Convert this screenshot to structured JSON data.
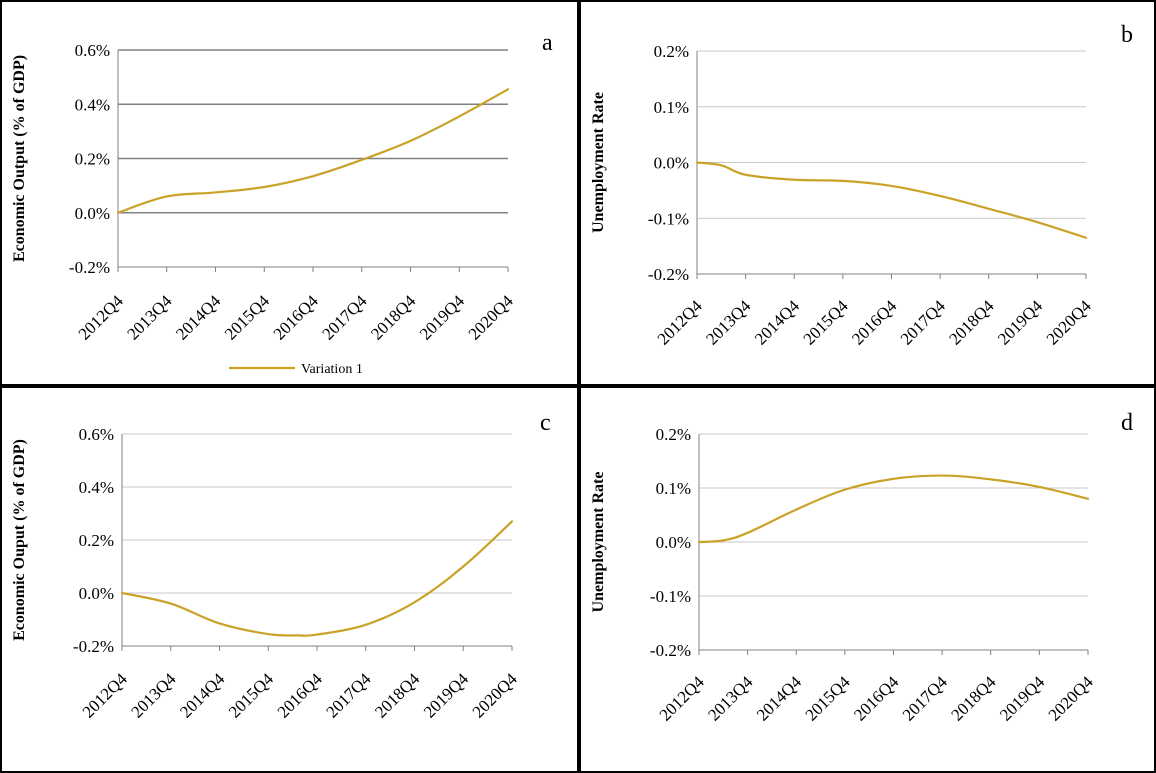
{
  "colors": {
    "series": "#c9a227",
    "axis": "#808080",
    "grid_light": "#c8c8c8",
    "grid_dark": "#808080"
  },
  "chart_data": [
    {
      "panel": "a",
      "type": "line",
      "ylabel": "Economic Output (% of GDP)",
      "ylim": [
        -0.2,
        0.6
      ],
      "yticks": [
        "-0.2%",
        "0.0%",
        "0.2%",
        "0.4%",
        "0.6%"
      ],
      "yticks_values": [
        -0.2,
        0.0,
        0.2,
        0.4,
        0.6
      ],
      "xticks": [
        "2012Q4",
        "2013Q4",
        "2014Q4",
        "2015Q4",
        "2016Q4",
        "2017Q4",
        "2018Q4",
        "2019Q4",
        "2020Q4"
      ],
      "grid": "major-dark",
      "legend": "bottom",
      "series": [
        {
          "name": "Variation 1",
          "x": [
            0,
            1,
            2,
            3,
            4,
            5,
            6,
            7,
            8
          ],
          "y": [
            0.0,
            0.06,
            0.075,
            0.095,
            0.135,
            0.195,
            0.265,
            0.355,
            0.455
          ]
        }
      ]
    },
    {
      "panel": "b",
      "type": "line",
      "ylabel": "Unemployment Rate",
      "ylim": [
        -0.2,
        0.2
      ],
      "yticks": [
        "-0.2%",
        "-0.1%",
        "0.0%",
        "0.1%",
        "0.2%"
      ],
      "yticks_values": [
        -0.2,
        -0.1,
        0.0,
        0.1,
        0.2
      ],
      "xticks": [
        "2012Q4",
        "2013Q4",
        "2014Q4",
        "2015Q4",
        "2016Q4",
        "2017Q4",
        "2018Q4",
        "2019Q4",
        "2020Q4"
      ],
      "grid": "major-light",
      "series": [
        {
          "name": "",
          "x": [
            0,
            0.5,
            1,
            2,
            3,
            4,
            5,
            6,
            7,
            8
          ],
          "y": [
            0.0,
            -0.005,
            -0.022,
            -0.031,
            -0.033,
            -0.042,
            -0.06,
            -0.083,
            -0.107,
            -0.135
          ]
        }
      ]
    },
    {
      "panel": "c",
      "type": "line",
      "ylabel": "Economic Ouput (% of GDP)",
      "ylim": [
        -0.2,
        0.6
      ],
      "yticks": [
        "-0.2%",
        "0.0%",
        "0.2%",
        "0.4%",
        "0.6%"
      ],
      "yticks_values": [
        -0.2,
        0.0,
        0.2,
        0.4,
        0.6
      ],
      "xticks": [
        "2012Q4",
        "2013Q4",
        "2014Q4",
        "2015Q4",
        "2016Q4",
        "2017Q4",
        "2018Q4",
        "2019Q4",
        "2020Q4"
      ],
      "grid": "major-light",
      "series": [
        {
          "name": "",
          "x": [
            0,
            1,
            2,
            3,
            3.6,
            4,
            5,
            6,
            7,
            8
          ],
          "y": [
            0.0,
            -0.04,
            -0.115,
            -0.155,
            -0.16,
            -0.157,
            -0.12,
            -0.035,
            0.1,
            0.27
          ]
        }
      ]
    },
    {
      "panel": "d",
      "type": "line",
      "ylabel": "Unemployment Rate",
      "ylim": [
        -0.2,
        0.2
      ],
      "yticks": [
        "-0.2%",
        "-0.1%",
        "0.0%",
        "0.1%",
        "0.2%"
      ],
      "yticks_values": [
        -0.2,
        -0.1,
        0.0,
        0.1,
        0.2
      ],
      "xticks": [
        "2012Q4",
        "2013Q4",
        "2014Q4",
        "2015Q4",
        "2016Q4",
        "2017Q4",
        "2018Q4",
        "2019Q4",
        "2020Q4"
      ],
      "grid": "major-light",
      "series": [
        {
          "name": "",
          "x": [
            0,
            0.5,
            1,
            2,
            3,
            4,
            5,
            6,
            7,
            8
          ],
          "y": [
            0.0,
            0.003,
            0.017,
            0.06,
            0.097,
            0.117,
            0.123,
            0.116,
            0.102,
            0.08
          ]
        }
      ]
    }
  ]
}
